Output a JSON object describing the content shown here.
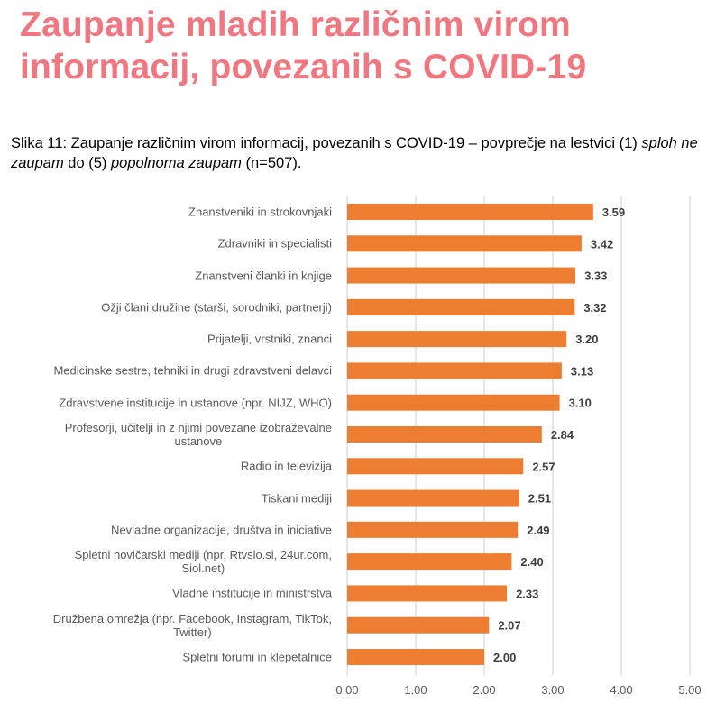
{
  "header": {
    "title_line1": "Zaupanje mladih različnim virom",
    "title_line2": "informacij, povezanih s COVID-19"
  },
  "caption": {
    "prefix": "Slika 11: Zaupanje različnim virom informacij, povezanih s COVID-19 – povprečje na lestvici (1) ",
    "italic1": "sploh ne zaupam",
    "middle": " do (5) ",
    "italic2": "popolnoma zaupam",
    "suffix": " (n=507)."
  },
  "colors": {
    "title": "#f0767f",
    "bar": "#ed7d31",
    "grid": "#d9d9d9",
    "label": "#595959",
    "value": "#404040"
  },
  "chart_data": {
    "type": "bar",
    "orientation": "horizontal",
    "categories": [
      "Znanstveniki in strokovnjaki",
      "Zdravniki in specialisti",
      "Znanstveni članki in knjige",
      "Ožji člani družine (starši, sorodniki, partnerji)",
      "Prijatelji, vrstniki, znanci",
      "Medicinske sestre, tehniki in drugi zdravstveni delavci",
      "Zdravstvene institucije in ustanove (npr. NIJZ, WHO)",
      "Profesorji, učitelji in z njimi povezane izobraževalne\nustanove",
      "Radio in televizija",
      "Tiskani mediji",
      "Nevladne organizacije, društva in iniciative",
      "Spletni novičarski mediji (npr. Rtvslo.si, 24ur.com,\nSiol.net)",
      "Vladne institucije in ministrstva",
      "Družbena omrežja (npr. Facebook, Instagram, TikTok,\nTwitter)",
      "Spletni forumi in klepetalnice"
    ],
    "values": [
      3.59,
      3.42,
      3.33,
      3.32,
      3.2,
      3.13,
      3.1,
      2.84,
      2.57,
      2.51,
      2.49,
      2.4,
      2.33,
      2.07,
      2.0
    ],
    "value_labels": [
      "3.59",
      "3.42",
      "3.33",
      "3.32",
      "3.20",
      "3.13",
      "3.10",
      "2.84",
      "2.57",
      "2.51",
      "2.49",
      "2.40",
      "2.33",
      "2.07",
      "2.00"
    ],
    "xlim": [
      0,
      5
    ],
    "xticks": [
      "0.00",
      "1.00",
      "2.00",
      "3.00",
      "4.00",
      "5.00"
    ],
    "grid": "vertical",
    "legend": "none"
  }
}
